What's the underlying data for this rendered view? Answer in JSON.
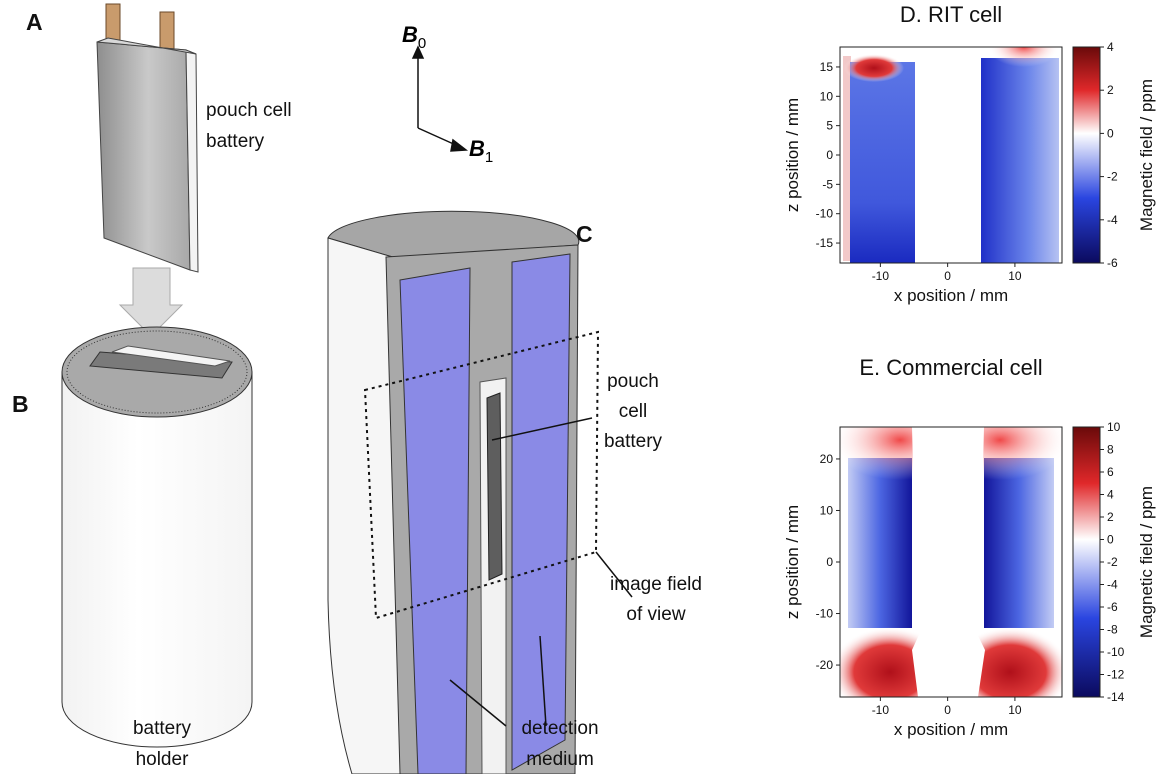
{
  "panel_labels": [
    "A",
    "B",
    "C"
  ],
  "diagram": {
    "pouch_cell": [
      "pouch cell",
      "battery"
    ],
    "battery_holder": [
      "battery",
      "holder"
    ],
    "pouch_cell_c": [
      "pouch",
      "cell",
      "battery"
    ],
    "image_field": [
      "image field",
      "of view"
    ],
    "detection_medium": [
      "detection",
      "medium"
    ],
    "b0": {
      "symbol": "B",
      "subscript": "0"
    },
    "b1": {
      "symbol": "B",
      "subscript": "1"
    }
  },
  "chart_data": [
    {
      "type": "heatmap",
      "title": "D. RIT cell",
      "x_label": "x position / mm",
      "y_label": "z position / mm",
      "colorbar_label": "Magnetic field / ppm",
      "xlim": [
        -16,
        17
      ],
      "xticks": [
        -10,
        0,
        10
      ],
      "ylim": [
        -18.4,
        18.4
      ],
      "yticks": [
        -15,
        -10,
        -5,
        0,
        5,
        10,
        15
      ],
      "clim": [
        -6,
        4
      ],
      "cticks": [
        -6,
        -4,
        -2,
        0,
        2,
        4
      ],
      "colormap": [
        "#0b0a5e",
        "#2a45e0",
        "#ffffff",
        "#e0282a",
        "#6a0a0a"
      ]
    },
    {
      "type": "heatmap",
      "title": "E. Commercial cell",
      "x_label": "x position / mm",
      "y_label": "z position / mm",
      "colorbar_label": "Magnetic field / ppm",
      "xlim": [
        -16,
        17
      ],
      "xticks": [
        -10,
        0,
        10
      ],
      "ylim": [
        -26.2,
        26.2
      ],
      "yticks": [
        -20,
        -10,
        0,
        10,
        20
      ],
      "clim": [
        -14,
        10
      ],
      "cticks": [
        -14,
        -12,
        -10,
        -8,
        -6,
        -4,
        -2,
        0,
        2,
        4,
        6,
        8,
        10
      ],
      "colormap": [
        "#0b0a5e",
        "#2a45e0",
        "#ffffff",
        "#e0282a",
        "#6a0a0a"
      ]
    }
  ]
}
